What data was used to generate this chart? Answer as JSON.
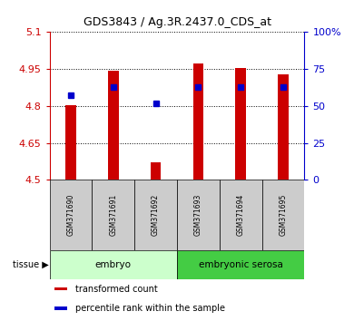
{
  "title": "GDS3843 / Ag.3R.2437.0_CDS_at",
  "samples": [
    "GSM371690",
    "GSM371691",
    "GSM371692",
    "GSM371693",
    "GSM371694",
    "GSM371695"
  ],
  "transformed_count": [
    4.802,
    4.942,
    4.572,
    4.972,
    4.955,
    4.93
  ],
  "percentile_rank": [
    57,
    63,
    52,
    63,
    63,
    63
  ],
  "bar_bottom": 4.5,
  "ylim_left": [
    4.5,
    5.1
  ],
  "ylim_right": [
    0,
    100
  ],
  "yticks_left": [
    4.5,
    4.65,
    4.8,
    4.95,
    5.1
  ],
  "ytick_labels_left": [
    "4.5",
    "4.65",
    "4.8",
    "4.95",
    "5.1"
  ],
  "yticks_right": [
    0,
    25,
    50,
    75,
    100
  ],
  "ytick_labels_right": [
    "0",
    "25",
    "50",
    "75",
    "100%"
  ],
  "bar_color": "#cc0000",
  "dot_color": "#0000cc",
  "bar_width": 0.25,
  "tissue_groups": [
    {
      "label": "embryo",
      "indices": [
        0,
        1,
        2
      ],
      "color": "#ccffcc"
    },
    {
      "label": "embryonic serosa",
      "indices": [
        3,
        4,
        5
      ],
      "color": "#44cc44"
    }
  ],
  "legend_items": [
    {
      "color": "#cc0000",
      "label": "transformed count"
    },
    {
      "color": "#0000cc",
      "label": "percentile rank within the sample"
    }
  ],
  "tissue_label": "tissue",
  "grid_color": "#000000",
  "bg_color": "#ffffff",
  "left_tick_color": "#cc0000",
  "right_tick_color": "#0000cc",
  "sample_bg_color": "#cccccc",
  "figsize": [
    3.9,
    3.54
  ],
  "dpi": 100
}
